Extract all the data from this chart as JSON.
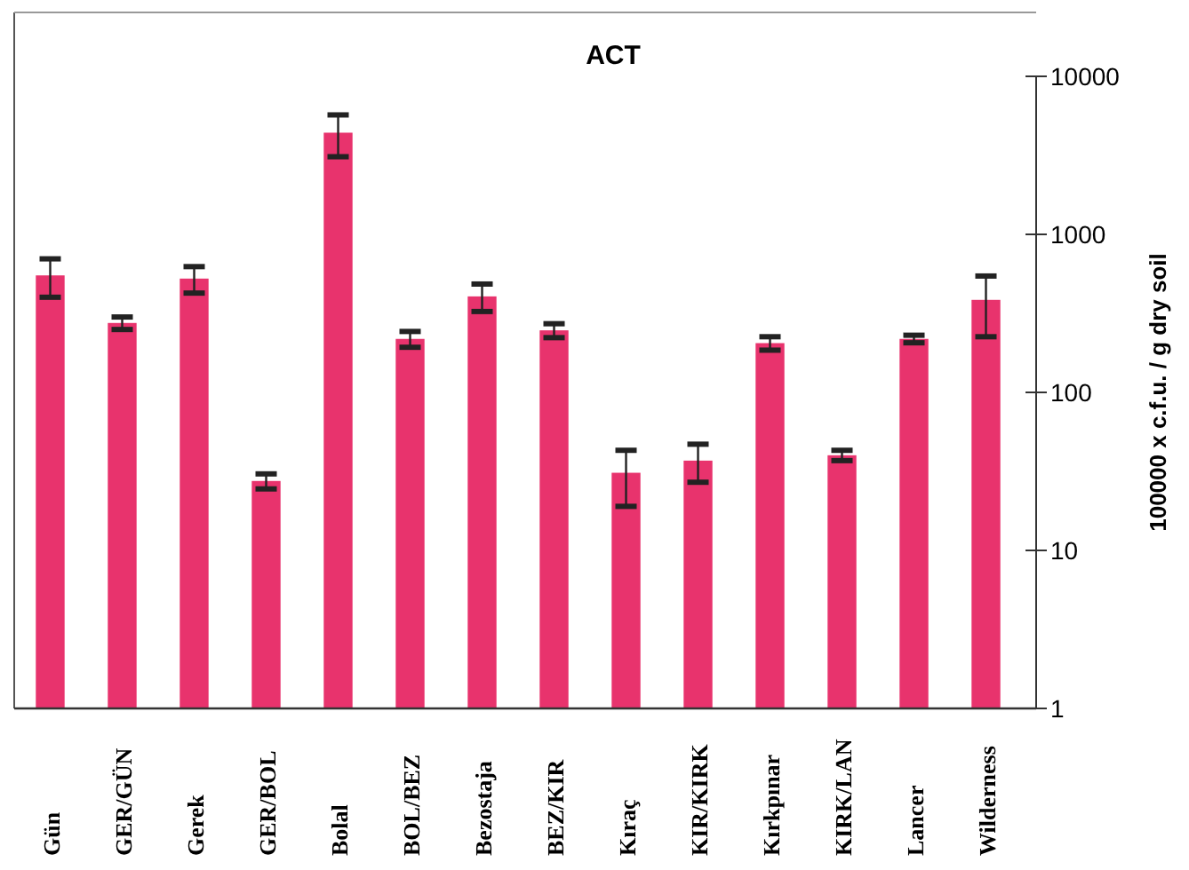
{
  "chart_data": {
    "type": "bar",
    "title": "ACT",
    "ylabel": "100000 x c.f.u. / g dry soil",
    "categories": [
      "Gün",
      "GER/GÜN",
      "Gerek",
      "GER/BOL",
      "Bolal",
      "BOL/BEZ",
      "Bezostaja",
      "BEZ/KIR",
      "Kıraç",
      "KIR/KIRK",
      "Kırkpınar",
      "KIRK/LAN",
      "Lancer",
      "Wilderness"
    ],
    "values": [
      550,
      275,
      525,
      27.5,
      4400,
      218,
      405,
      247,
      31,
      37,
      205,
      40,
      218,
      385
    ],
    "errors": [
      150,
      25,
      100,
      3,
      1300,
      25,
      80,
      25,
      12,
      10,
      20,
      3,
      12,
      160
    ],
    "color": "#e8336d",
    "log": "y",
    "ylim": [
      1,
      10000
    ],
    "yticks": [
      1,
      10,
      100,
      1000,
      10000
    ],
    "grid": false
  }
}
